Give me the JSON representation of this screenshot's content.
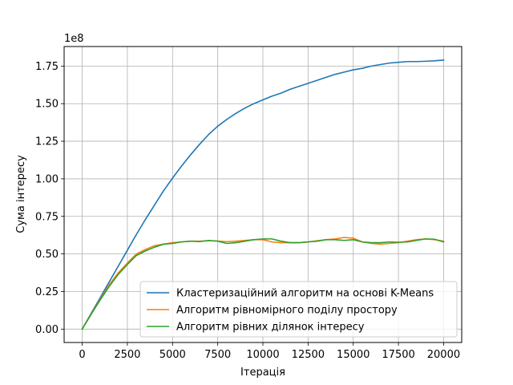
{
  "chart_data": {
    "type": "line",
    "title": "",
    "xlabel": "Ітерація",
    "ylabel": "Сума інтересу",
    "y_offset_text": "1e8",
    "xlim": [
      -1000,
      21000
    ],
    "ylim": [
      -8900000,
      188000000
    ],
    "grid": true,
    "legend_position": "lower-right",
    "xticks": [
      0,
      2500,
      5000,
      7500,
      10000,
      12500,
      15000,
      17500,
      20000
    ],
    "xtick_labels": [
      "0",
      "2500",
      "5000",
      "7500",
      "10000",
      "12500",
      "15000",
      "17500",
      "20000"
    ],
    "yticks": [
      0,
      25000000,
      50000000,
      75000000,
      100000000,
      125000000,
      150000000,
      175000000
    ],
    "ytick_labels": [
      "0.00",
      "0.25",
      "0.50",
      "0.75",
      "1.00",
      "1.25",
      "1.50",
      "1.75"
    ],
    "series": [
      {
        "name": "Кластеризаційний алгоритм на основі K-Means",
        "color": "#1f77b4",
        "x": [
          0,
          500,
          1000,
          1500,
          2000,
          2500,
          3000,
          3500,
          4000,
          4500,
          5000,
          5500,
          6000,
          6500,
          7000,
          7500,
          8000,
          8500,
          9000,
          9500,
          10000,
          10500,
          11000,
          11500,
          12000,
          12500,
          13000,
          13500,
          14000,
          14500,
          15000,
          15500,
          16000,
          16500,
          17000,
          17500,
          18000,
          18500,
          19000,
          19500,
          20000
        ],
        "y": [
          0,
          10500000,
          21000000,
          31500000,
          42000000,
          52500000,
          63000000,
          73000000,
          82500000,
          92000000,
          100500000,
          108500000,
          116000000,
          123000000,
          129500000,
          135000000,
          139500000,
          143500000,
          147000000,
          150000000,
          152500000,
          155000000,
          157000000,
          159500000,
          161500000,
          163500000,
          165500000,
          167500000,
          169500000,
          171000000,
          172500000,
          173500000,
          175000000,
          176000000,
          177000000,
          177500000,
          178000000,
          178000000,
          178200000,
          178500000,
          179000000
        ]
      },
      {
        "name": "Алгоритм рівномірного поділу простору",
        "color": "#ff7f0e",
        "x": [
          0,
          500,
          1000,
          1500,
          2000,
          2500,
          3000,
          3500,
          4000,
          4500,
          5000,
          5500,
          6000,
          6500,
          7000,
          7500,
          8000,
          8500,
          9000,
          9500,
          10000,
          10500,
          11000,
          11500,
          12000,
          12500,
          13000,
          13500,
          14000,
          14500,
          15000,
          15500,
          16000,
          16500,
          17000,
          17500,
          18000,
          18500,
          19000,
          19500,
          20000
        ],
        "y": [
          0,
          10000000,
          20000000,
          29500000,
          37500000,
          44000000,
          50000000,
          53000000,
          55500000,
          56500000,
          57500000,
          58000000,
          58500000,
          58500000,
          58800000,
          58600000,
          58200000,
          58500000,
          59000000,
          59500000,
          59500000,
          58000000,
          57500000,
          57500000,
          57500000,
          58000000,
          58800000,
          59500000,
          60000000,
          61000000,
          60500000,
          58000000,
          57000000,
          56500000,
          57000000,
          57500000,
          58500000,
          59500000,
          60000000,
          59500000,
          58500000
        ]
      },
      {
        "name": "Алгоритм рівних ділянок інтересу",
        "color": "#2ca02c",
        "x": [
          0,
          500,
          1000,
          1500,
          2000,
          2500,
          3000,
          3500,
          4000,
          4500,
          5000,
          5500,
          6000,
          6500,
          7000,
          7500,
          8000,
          8500,
          9000,
          9500,
          10000,
          10500,
          11000,
          11500,
          12000,
          12500,
          13000,
          13500,
          14000,
          14500,
          15000,
          15500,
          16000,
          16500,
          17000,
          17500,
          18000,
          18500,
          19000,
          19500,
          20000
        ],
        "y": [
          0,
          10000000,
          19500000,
          28500000,
          36500000,
          43000000,
          49000000,
          52000000,
          54500000,
          56500000,
          57000000,
          58000000,
          58500000,
          58200000,
          59000000,
          58500000,
          57000000,
          57500000,
          58500000,
          59500000,
          60000000,
          60000000,
          58500000,
          57500000,
          57500000,
          58000000,
          58500000,
          59500000,
          59500000,
          59000000,
          59500000,
          58000000,
          57500000,
          57500000,
          58000000,
          57800000,
          58000000,
          59000000,
          60000000,
          59800000,
          58000000
        ]
      }
    ]
  }
}
